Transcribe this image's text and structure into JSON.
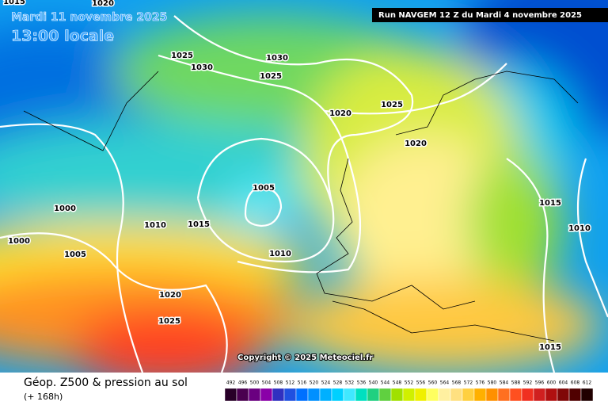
{
  "header": {
    "date": "Mardi 11 novembre 2025",
    "time": "13:00 locale",
    "run": "Run NAVGEM 12 Z du Mardi 4 novembre 2025"
  },
  "copyright": "Copyright © 2025 Meteociel.fr",
  "footer": {
    "title": "Géop. Z500 & pression au sol",
    "lead": "(+ 168h)"
  },
  "isobar_labels": [
    "1020",
    "1025",
    "1030",
    "1030",
    "1025",
    "1025",
    "1020",
    "1020",
    "1005",
    "1000",
    "1000",
    "1010",
    "1015",
    "1005",
    "1010",
    "1020",
    "1025",
    "1015",
    "1010",
    "1015",
    "1015"
  ],
  "scale": [
    492,
    496,
    500,
    504,
    508,
    512,
    516,
    520,
    524,
    528,
    532,
    536,
    540,
    544,
    548,
    552,
    556,
    560,
    564,
    568,
    572,
    576,
    580,
    584,
    588,
    592,
    596,
    600,
    604,
    608,
    612
  ]
}
